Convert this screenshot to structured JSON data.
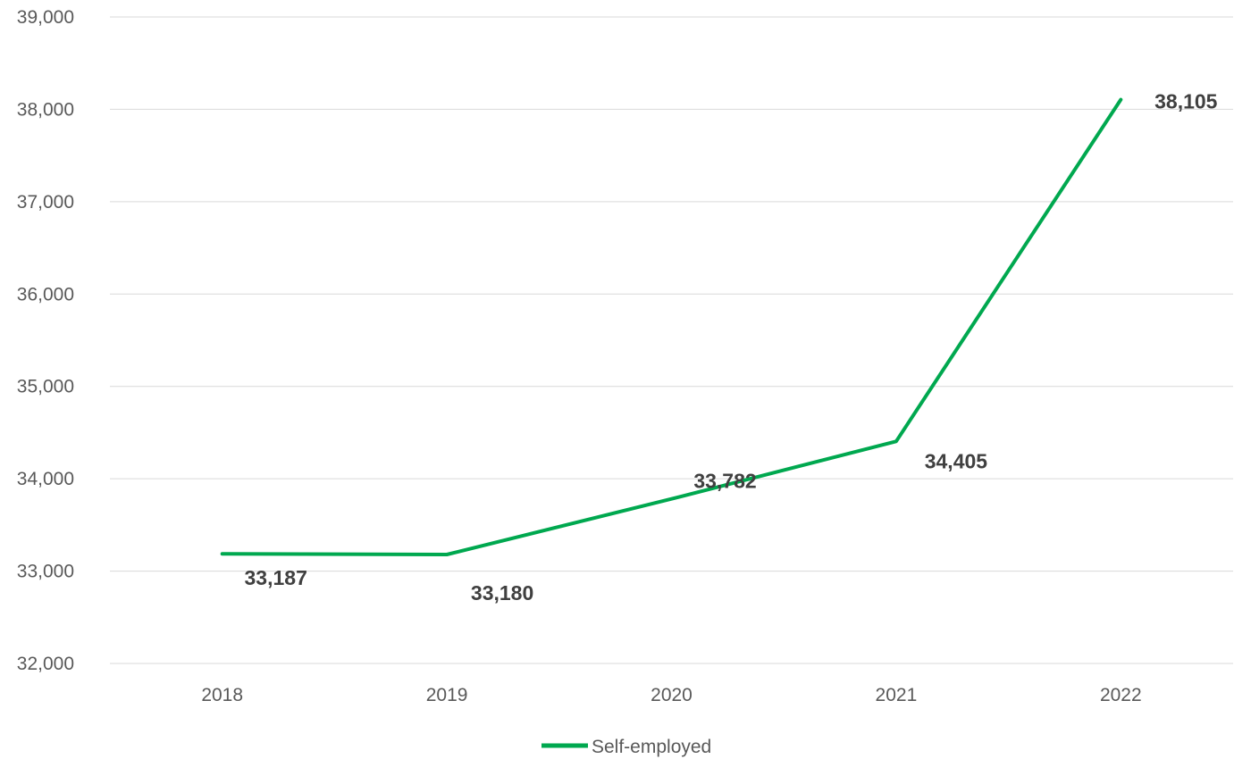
{
  "chart_data": {
    "type": "line",
    "title": "",
    "xlabel": "",
    "ylabel": "",
    "categories": [
      "2018",
      "2019",
      "2020",
      "2021",
      "2022"
    ],
    "series": [
      {
        "name": "Self-employed",
        "values": [
          33187,
          33180,
          33782,
          34405,
          38105
        ],
        "color": "#00a84f"
      }
    ],
    "data_labels": [
      "33,187",
      "33,180",
      "33,782",
      "34,405",
      "38,105"
    ],
    "ylim": [
      32000,
      39000
    ],
    "yticks": [
      32000,
      33000,
      34000,
      35000,
      36000,
      37000,
      38000,
      39000
    ],
    "ytick_labels": [
      "32,000",
      "33,000",
      "34,000",
      "35,000",
      "36,000",
      "37,000",
      "38,000",
      "39,000"
    ],
    "grid": true,
    "legend_position": "bottom"
  }
}
